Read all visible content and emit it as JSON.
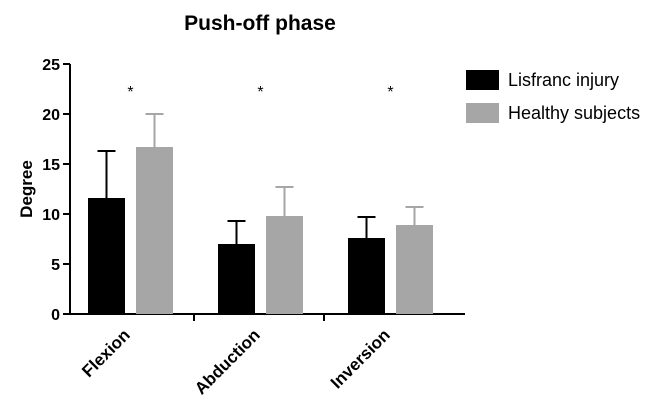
{
  "chart_data": {
    "type": "bar",
    "title": "Push-off phase",
    "ylabel": "Degree",
    "xlabel": "",
    "ylim": [
      0,
      25
    ],
    "yticks": [
      0,
      5,
      10,
      15,
      20,
      25
    ],
    "categories": [
      "Flexion",
      "Abduction",
      "Inversion"
    ],
    "series": [
      {
        "name": "Lisfranc injury",
        "color": "#000000",
        "values": [
          11.6,
          7.0,
          7.6
        ],
        "errors": [
          4.7,
          2.3,
          2.1
        ]
      },
      {
        "name": "Healthy subjects",
        "color": "#a6a6a6",
        "values": [
          16.7,
          9.8,
          8.9
        ],
        "errors": [
          3.3,
          2.9,
          1.8
        ]
      }
    ],
    "annotations": [
      "*",
      "*",
      "*"
    ],
    "legend_position": "top-right",
    "grid": false
  }
}
